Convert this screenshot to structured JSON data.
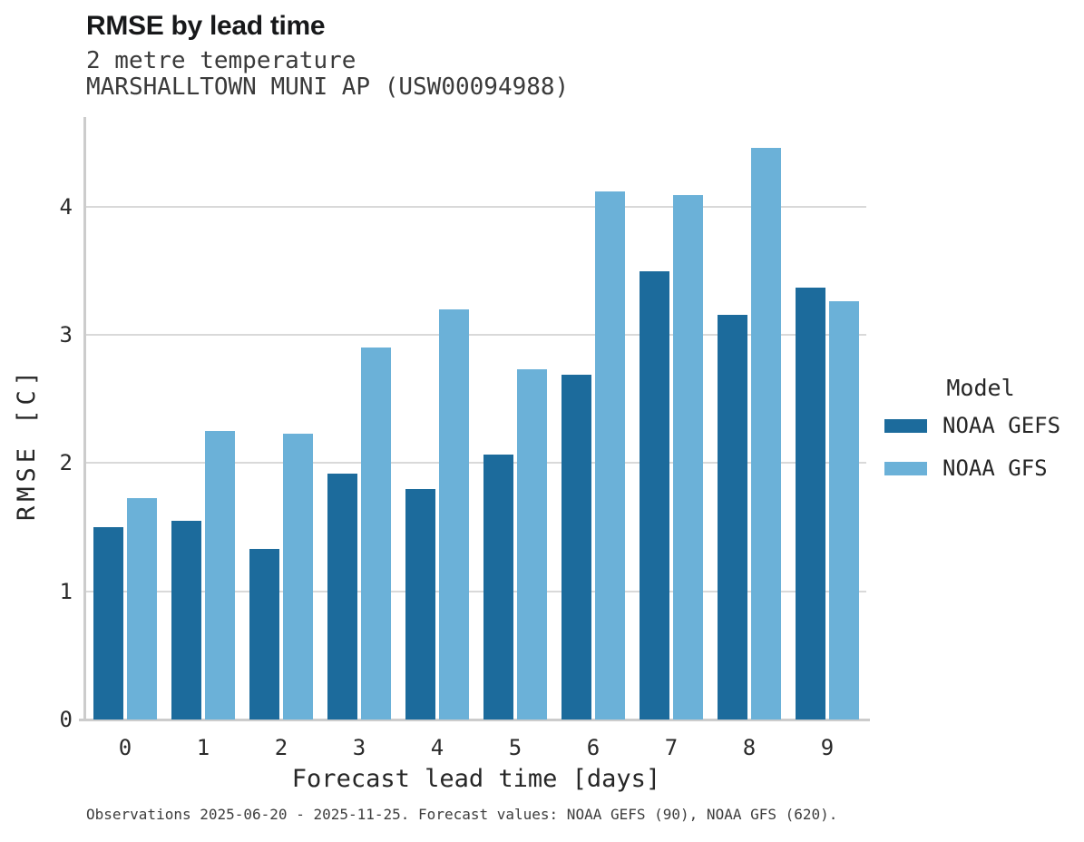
{
  "header": {
    "title": "RMSE by lead time",
    "subtitle": "2 metre temperature",
    "station": "MARSHALLTOWN MUNI AP (USW00094988)"
  },
  "chart_data": {
    "type": "bar",
    "title": "RMSE by lead time",
    "subtitle": "2 metre temperature",
    "station": "MARSHALLTOWN MUNI AP (USW00094988)",
    "categories": [
      "0",
      "1",
      "2",
      "3",
      "4",
      "5",
      "6",
      "7",
      "8",
      "9"
    ],
    "series": [
      {
        "name": "NOAA GEFS",
        "color": "#1c6b9c",
        "values": [
          1.5,
          1.55,
          1.33,
          1.92,
          1.8,
          2.07,
          2.69,
          3.5,
          3.16,
          3.37
        ]
      },
      {
        "name": "NOAA GFS",
        "color": "#6bb1d8",
        "values": [
          1.73,
          2.25,
          2.23,
          2.9,
          3.2,
          2.73,
          4.12,
          4.09,
          4.46,
          3.26
        ]
      }
    ],
    "xlabel": "Forecast lead time [days]",
    "ylabel": "RMSE [C]",
    "ylim": [
      0,
      4.7
    ],
    "yticks": [
      0,
      1,
      2,
      3,
      4
    ],
    "grid": true,
    "legend_title": "Model",
    "legend_position": "right"
  },
  "axes": {
    "xlabel": "Forecast lead time [days]",
    "ylabel": "RMSE [C]"
  },
  "legend": {
    "title": "Model",
    "items": [
      {
        "label": "NOAA GEFS",
        "color": "#1c6b9c"
      },
      {
        "label": "NOAA GFS",
        "color": "#6bb1d8"
      }
    ]
  },
  "footer": {
    "note": "Observations 2025-06-20 - 2025-11-25. Forecast values: NOAA GEFS (90), NOAA GFS (620)."
  },
  "colors": {
    "gefs_bar": "#1c6b9c",
    "gfs_bar": "#6bb1d8",
    "gridline": "#d9d9d9",
    "axis_line": "#cccccc",
    "background": "#ffffff"
  }
}
